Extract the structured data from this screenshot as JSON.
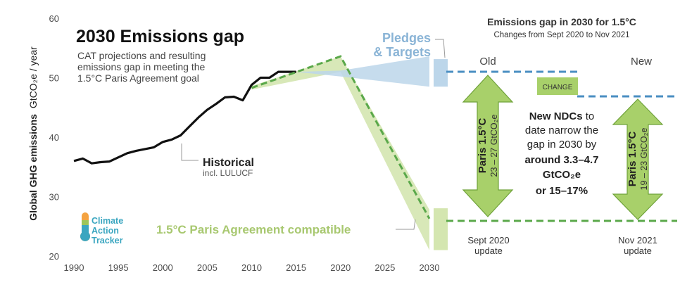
{
  "chart_data": {
    "type": "line",
    "title": "2030 Emissions gap",
    "subtitle_lines": [
      "CAT projections and resulting",
      "emissions gap in meeting the",
      "1.5°C Paris Agreement goal"
    ],
    "ylabel_main": "Global GHG  emissions",
    "ylabel_unit": "GtCO₂e / year",
    "xlim": [
      1990,
      2030
    ],
    "ylim": [
      20,
      60
    ],
    "xticks": [
      "1990",
      "1995",
      "2000",
      "2005",
      "2010",
      "2015",
      "2020",
      "2025",
      "2030"
    ],
    "yticks": [
      "20",
      "30",
      "40",
      "50",
      "60"
    ],
    "series": [
      {
        "name": "Historical",
        "note": "incl. LULUCF",
        "color": "#111111",
        "x": [
          1990,
          1991,
          1992,
          1993,
          1994,
          1995,
          1996,
          1997,
          1998,
          1999,
          2000,
          2001,
          2002,
          2003,
          2004,
          2005,
          2006,
          2007,
          2008,
          2009,
          2010,
          2011,
          2012,
          2013,
          2014,
          2015
        ],
        "y": [
          36.0,
          36.4,
          35.6,
          35.8,
          35.9,
          36.6,
          37.3,
          37.7,
          38.0,
          38.3,
          39.2,
          39.6,
          40.3,
          41.8,
          43.3,
          44.6,
          45.6,
          46.7,
          46.8,
          46.2,
          48.8,
          50.0,
          50.0,
          51.0,
          51.0,
          51.0
        ]
      },
      {
        "name": "Pledges & Targets",
        "color": "#bcd6ea",
        "x": [
          2015,
          2020,
          2030
        ],
        "upper": [
          51.0,
          51.2,
          53.6
        ],
        "lower": [
          51.0,
          50.2,
          48.5
        ]
      },
      {
        "name": "1.5°C Paris Agreement compatible",
        "color": "#d4e6b0",
        "x": [
          2010,
          2020,
          2030
        ],
        "upper": [
          48.6,
          53.6,
          27.8
        ],
        "lower": [
          48.0,
          51.0,
          21.0
        ],
        "dashed_line": [
          48.3,
          53.6,
          26.3
        ]
      }
    ]
  },
  "logo": {
    "lines": [
      "Climate",
      "Action",
      "Tracker"
    ]
  },
  "gap_panel": {
    "title": "Emissions gap in 2030 for 1.5°C",
    "subtitle": "Changes from Sept 2020 to Nov 2021",
    "old_label": "Old",
    "new_label": "New",
    "change_label": "CHANGE",
    "old_arrow_title": "Paris 1.5°C",
    "old_arrow_range": "23 – 27 GtCO₂e",
    "new_arrow_title": "Paris 1.5°C",
    "new_arrow_range": "19 – 23 GtCO₂e",
    "ndc_lines": [
      {
        "text": "New NDCs to",
        "bold": false,
        "bold_prefix": "New NDCs"
      },
      {
        "text": "date narrow the",
        "bold": false
      },
      {
        "text": "gap in 2030 by",
        "bold": false
      },
      {
        "text": "around 3.3–4.7",
        "bold": true
      },
      {
        "text": "GtCO₂e",
        "bold": true
      },
      {
        "text": "or 15–17%",
        "bold": true
      }
    ],
    "old_update": [
      "Sept 2020",
      "update"
    ],
    "new_update": [
      "Nov 2021",
      "update"
    ]
  },
  "colors": {
    "historical": "#111111",
    "pledges": "#bcd6ea",
    "pledges_text": "#8ab4d6",
    "paris_fill": "#d4e6b0",
    "paris_line": "#5aa84a",
    "paris_text": "#a8c870",
    "arrow_fill": "#a8d06a",
    "arrow_stroke": "#6fa23a",
    "gap_dash_blue": "#4a8ec2",
    "gap_dash_green": "#5aa84a",
    "change_box": "#a8d06a"
  }
}
